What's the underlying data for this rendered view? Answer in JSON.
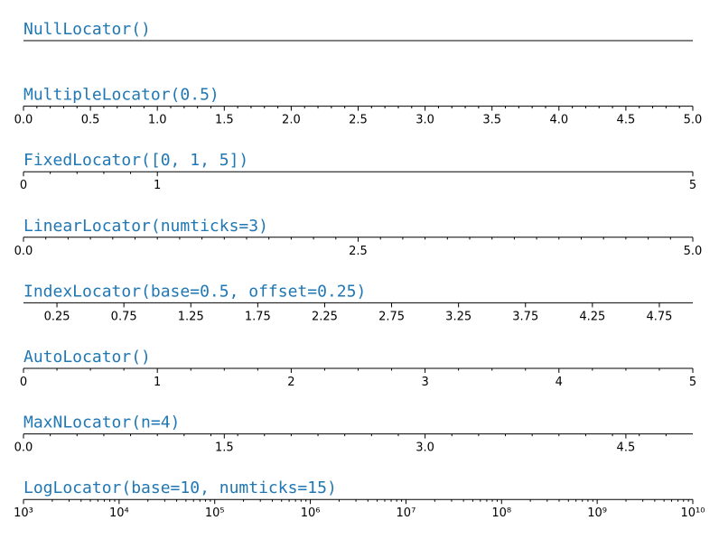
{
  "chart_data": [
    {
      "type": "axis",
      "title": "NullLocator()",
      "xlim": [
        0,
        5
      ]
    },
    {
      "type": "axis",
      "title": "MultipleLocator(0.5)",
      "xlim": [
        0,
        5
      ],
      "xticks": [
        {
          "value": 0,
          "label": "0.0"
        },
        0.5,
        {
          "value": 1,
          "label": "1.0"
        },
        1.5,
        {
          "value": 2,
          "label": "2.0"
        },
        2.5,
        {
          "value": 3,
          "label": "3.0"
        },
        3.5,
        {
          "value": 4,
          "label": "4.0"
        },
        4.5,
        {
          "value": 5,
          "label": "5.0"
        }
      ],
      "minor_xticks": [
        0.1,
        0.2,
        0.3,
        0.4,
        0.6,
        0.7,
        0.8,
        0.9,
        1.1,
        1.2,
        1.3,
        1.4,
        1.6,
        1.7,
        1.8,
        1.9,
        2.1,
        2.2,
        2.3,
        2.4,
        2.6,
        2.7,
        2.8,
        2.9,
        3.1,
        3.2,
        3.3,
        3.4,
        3.6,
        3.7,
        3.8,
        3.9,
        4.1,
        4.2,
        4.3,
        4.4,
        4.6,
        4.7,
        4.8,
        4.9
      ]
    },
    {
      "type": "axis",
      "title": "FixedLocator([0, 1, 5])",
      "xlim": [
        0,
        5
      ],
      "xticks": [
        0,
        1,
        5
      ],
      "minor_xticks": [
        0.2,
        0.4,
        0.6,
        0.8
      ]
    },
    {
      "type": "axis",
      "title": "LinearLocator(numticks=3)",
      "xlim": [
        0,
        5
      ],
      "xticks": [
        {
          "value": 0,
          "label": "0.0"
        },
        2.5,
        {
          "value": 5,
          "label": "5.0"
        }
      ],
      "minor_xticks": [
        0.1667,
        0.3333,
        0.5,
        0.6667,
        0.8333,
        1,
        1.1667,
        1.3333,
        1.5,
        1.6667,
        1.8333,
        2,
        2.1667,
        2.3333,
        2.6667,
        2.8333,
        3,
        3.1667,
        3.3333,
        3.5,
        3.6667,
        3.8333,
        4,
        4.1667,
        4.3333,
        4.5,
        4.6667,
        4.8333
      ]
    },
    {
      "type": "axis",
      "title": "IndexLocator(base=0.5, offset=0.25)",
      "xlim": [
        0,
        5
      ],
      "xticks": [
        0.25,
        0.75,
        1.25,
        1.75,
        2.25,
        2.75,
        3.25,
        3.75,
        4.25,
        4.75
      ]
    },
    {
      "type": "axis",
      "title": "AutoLocator()",
      "xlim": [
        0,
        5
      ],
      "xticks": [
        0,
        1,
        2,
        3,
        4,
        5
      ],
      "minor_xticks": [
        0.25,
        0.5,
        0.75,
        1.25,
        1.5,
        1.75,
        2.25,
        2.5,
        2.75,
        3.25,
        3.5,
        3.75,
        4.25,
        4.5,
        4.75
      ]
    },
    {
      "type": "axis",
      "title": "MaxNLocator(n=4)",
      "xlim": [
        0,
        5
      ],
      "xticks": [
        {
          "value": 0,
          "label": "0.0"
        },
        1.5,
        {
          "value": 3,
          "label": "3.0"
        },
        4.5
      ],
      "minor_xticks": [
        0.2,
        0.4,
        0.6,
        0.8,
        1,
        1.2,
        1.4,
        1.6,
        1.8,
        2,
        2.2,
        2.4,
        2.6,
        2.8,
        3.2,
        3.4,
        3.6,
        3.8,
        4,
        4.2,
        4.4,
        4.6,
        4.8
      ]
    },
    {
      "type": "axis",
      "title": "LogLocator(base=10, numticks=15)",
      "xlim": [
        1000.0,
        10000000000.0
      ],
      "xscale": "log",
      "xticks": [
        {
          "value": 1000.0,
          "label": "10³"
        },
        {
          "value": 10000.0,
          "label": "10⁴"
        },
        {
          "value": 100000.0,
          "label": "10⁵"
        },
        {
          "value": 1000000.0,
          "label": "10⁶"
        },
        {
          "value": 10000000.0,
          "label": "10⁷"
        },
        {
          "value": 100000000.0,
          "label": "10⁸"
        },
        {
          "value": 1000000000.0,
          "label": "10⁹"
        },
        {
          "value": 10000000000.0,
          "label": "10¹⁰"
        }
      ],
      "minor_xticks": [
        2000.0,
        3000.0,
        4000.0,
        5000.0,
        6000.0,
        7000.0,
        8000.0,
        9000.0,
        20000.0,
        30000.0,
        40000.0,
        50000.0,
        60000.0,
        70000.0,
        80000.0,
        90000.0,
        200000.0,
        300000.0,
        400000.0,
        500000.0,
        600000.0,
        700000.0,
        800000.0,
        900000.0,
        2000000.0,
        3000000.0,
        4000000.0,
        5000000.0,
        6000000.0,
        7000000.0,
        8000000.0,
        9000000.0,
        20000000.0,
        30000000.0,
        40000000.0,
        50000000.0,
        60000000.0,
        70000000.0,
        80000000.0,
        90000000.0,
        200000000.0,
        300000000.0,
        400000000.0,
        500000000.0,
        600000000.0,
        700000000.0,
        800000000.0,
        900000000.0,
        2000000000.0,
        3000000000.0,
        4000000000.0,
        5000000000.0,
        6000000000.0,
        7000000000.0,
        8000000000.0,
        9000000000.0
      ]
    }
  ]
}
